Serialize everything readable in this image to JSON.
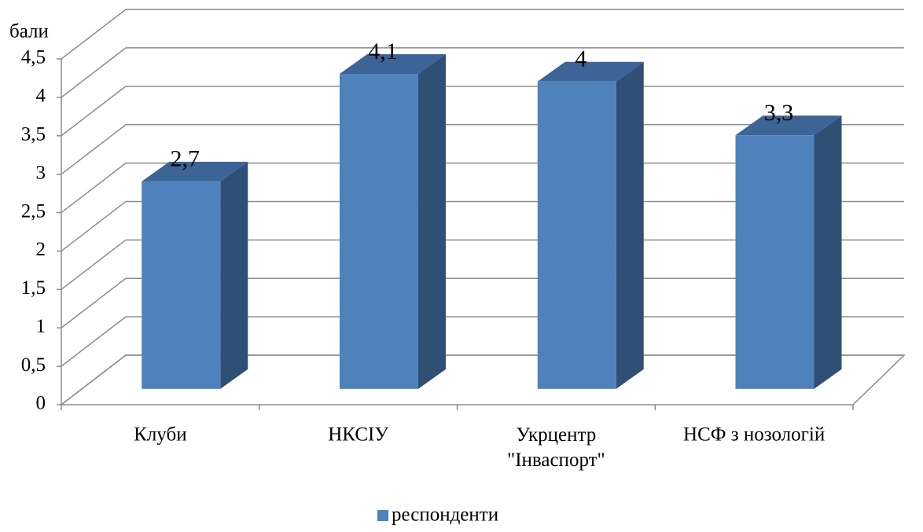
{
  "chart_data": {
    "type": "bar3d",
    "y_label": "бали",
    "categories": [
      "Клуби",
      "НКСІУ",
      "Укрцентр \"Інваспорт\"",
      "НСФ з нозологій"
    ],
    "series": [
      {
        "name": "респонденти",
        "color": "#4f81bd",
        "values": [
          2.7,
          4.1,
          4,
          3.3
        ],
        "value_labels": [
          "2,7",
          "4,1",
          "4",
          "3,3"
        ]
      }
    ],
    "ylim": [
      0,
      4.5
    ],
    "yticks": [
      0,
      {
        "value": 0.5,
        "label": "0,5"
      },
      1,
      {
        "value": 1.5,
        "label": "1,5"
      },
      2,
      {
        "value": 2.5,
        "label": "2,5"
      },
      3,
      {
        "value": 3.5,
        "label": "3,5"
      },
      4,
      {
        "value": 4.5,
        "label": "4,5"
      }
    ],
    "grid": true,
    "legend": "bottom"
  }
}
